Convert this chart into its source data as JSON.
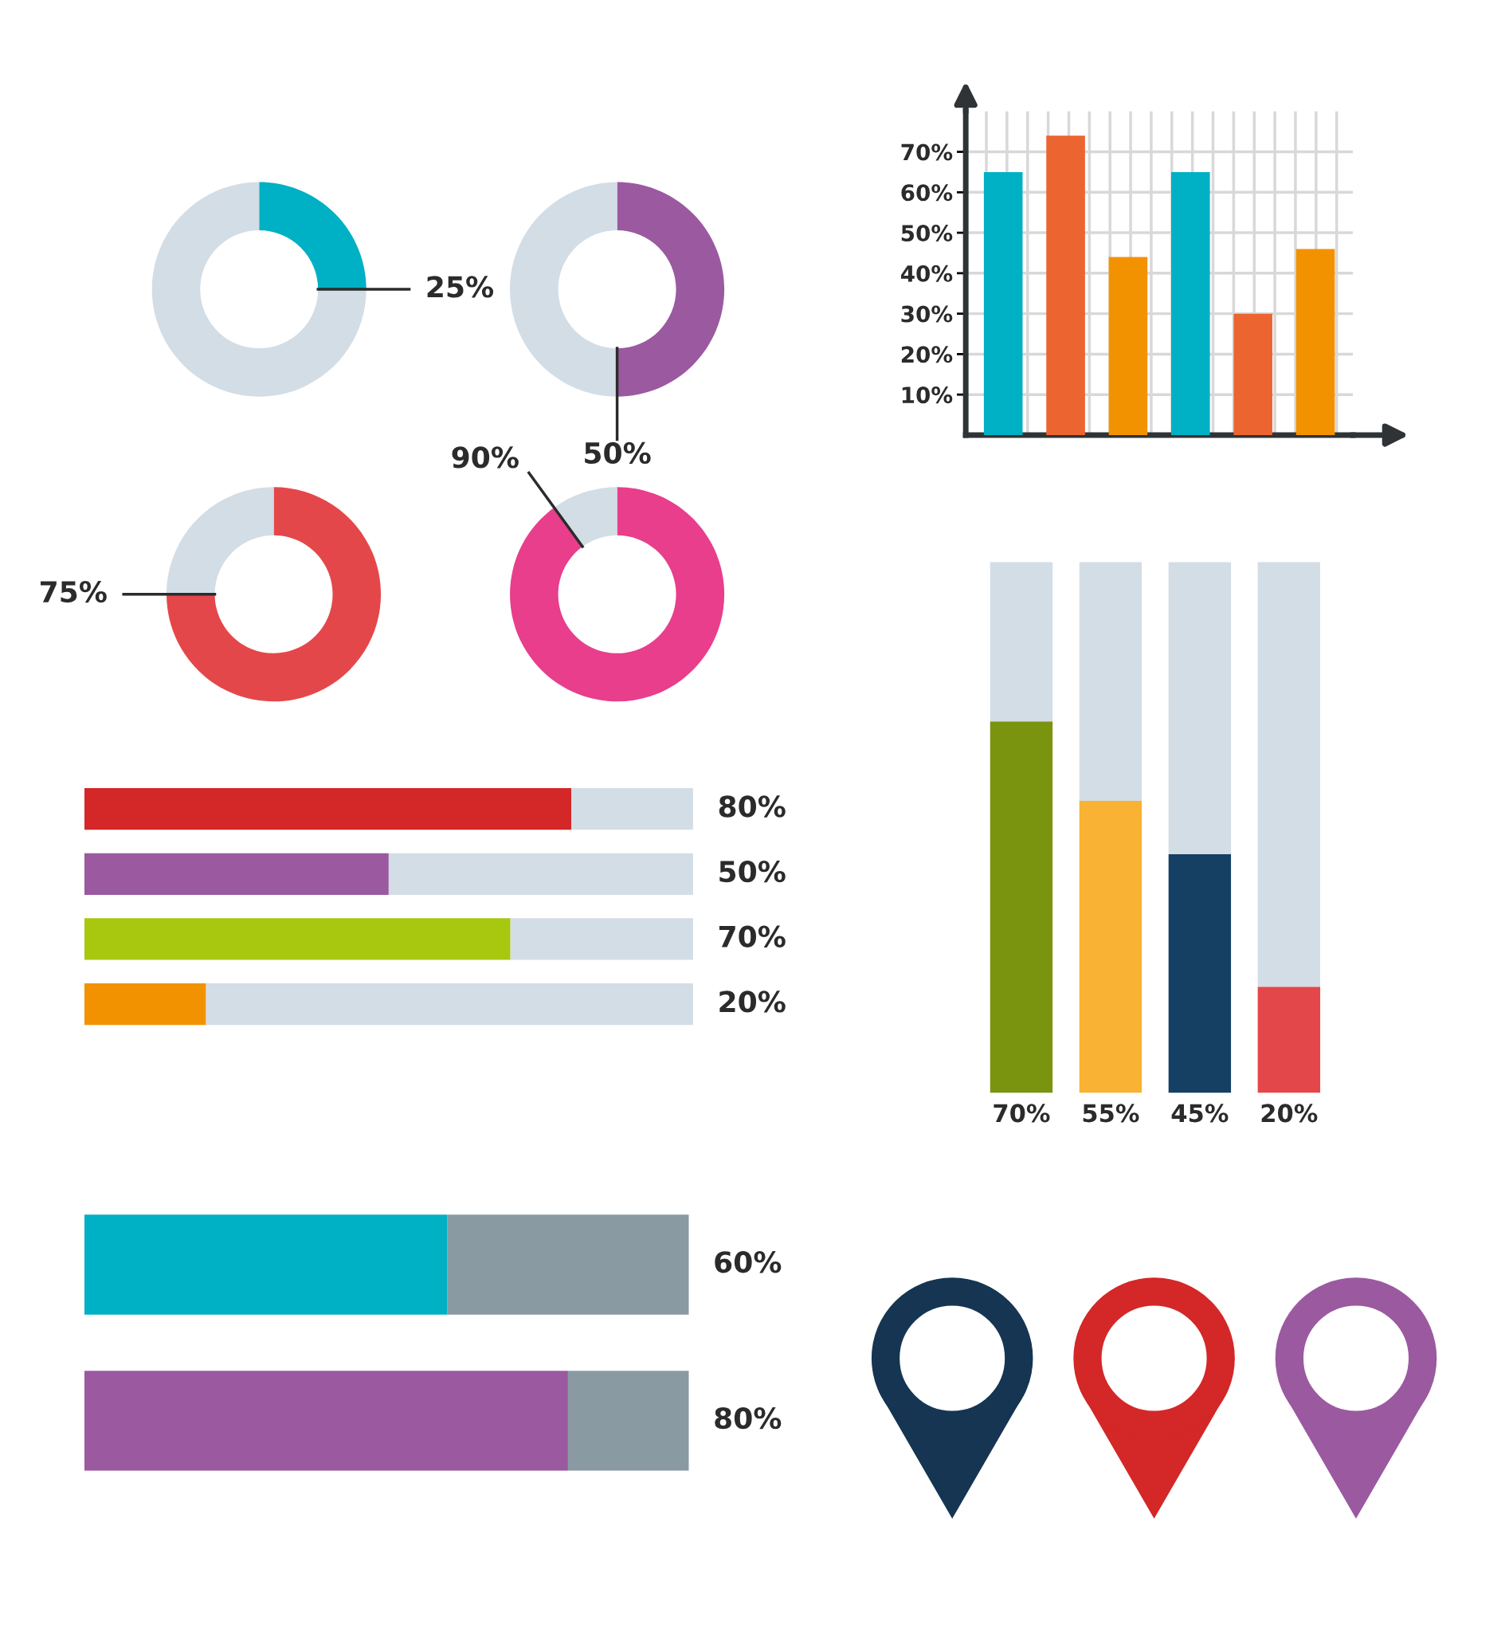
{
  "chart_data": [
    {
      "type": "donut",
      "categories": [
        null,
        null
      ],
      "values": [
        25,
        75
      ],
      "colors": [
        "#00b0c4",
        "#d3dde6"
      ],
      "value_labels": [
        "25%",
        null
      ]
    },
    {
      "type": "donut",
      "categories": [
        null,
        null
      ],
      "values": [
        50,
        50
      ],
      "colors": [
        "#9b59a0",
        "#d3dde6"
      ],
      "value_labels": [
        "50%",
        null
      ]
    },
    {
      "type": "donut",
      "categories": [
        null,
        null
      ],
      "values": [
        75,
        25
      ],
      "colors": [
        "#e4474a",
        "#d3dde6"
      ],
      "value_labels": [
        "75%",
        null
      ]
    },
    {
      "type": "donut",
      "categories": [
        null,
        null
      ],
      "values": [
        90,
        10
      ],
      "colors": [
        "#e83e8c",
        "#d3dde6"
      ],
      "value_labels": [
        "90%",
        null
      ]
    },
    {
      "type": "bar",
      "categories": [
        null,
        null,
        null,
        null,
        null,
        null
      ],
      "values": [
        65,
        74,
        44,
        65,
        30,
        46
      ],
      "colors": [
        "#00b0c4",
        "#ec6430",
        "#f39200",
        "#00b0c4",
        "#ec6430",
        "#f39200"
      ],
      "ylim": [
        0,
        80
      ],
      "yticks": [
        {
          "value": 10,
          "label": "10%"
        },
        {
          "value": 20,
          "label": "20%"
        },
        {
          "value": 30,
          "label": "30%"
        },
        {
          "value": 40,
          "label": "40%"
        },
        {
          "value": 50,
          "label": "50%"
        },
        {
          "value": 60,
          "label": "60%"
        },
        {
          "value": 70,
          "label": "70%"
        }
      ],
      "grid": true,
      "tick_labels": "y"
    },
    {
      "type": "bar",
      "orientation": "horizontal",
      "stacked": true,
      "categories": [
        null,
        null,
        null,
        null
      ],
      "xlim": [
        0,
        100
      ],
      "tick_labels": false,
      "series": [
        {
          "colors": [
            "#d42727",
            "#9b59a0",
            "#a8c70f",
            "#f39200"
          ],
          "values": [
            80,
            50,
            70,
            20
          ],
          "value_labels": [
            "80%",
            "50%",
            "70%",
            "20%"
          ]
        },
        {
          "color": "#d3dde6",
          "values": [
            20,
            50,
            30,
            80
          ]
        }
      ]
    },
    {
      "type": "bar",
      "stacked": true,
      "categories": [
        null,
        null,
        null,
        null
      ],
      "ylim": [
        0,
        100
      ],
      "tick_labels": false,
      "series": [
        {
          "colors": [
            "#7a9410",
            "#f9b233",
            "#153f63",
            "#e4474a"
          ],
          "values": [
            70,
            55,
            45,
            20
          ],
          "value_labels": [
            "70%",
            "55%",
            "45%",
            "20%"
          ]
        },
        {
          "color": "#d3dde6",
          "values": [
            30,
            45,
            55,
            80
          ]
        }
      ]
    },
    {
      "type": "bar",
      "orientation": "horizontal",
      "stacked": true,
      "categories": [
        null,
        null
      ],
      "xlim": [
        0,
        100
      ],
      "tick_labels": false,
      "series": [
        {
          "colors": [
            "#00b0c4",
            "#9b59a0"
          ],
          "values": [
            60,
            80
          ],
          "value_labels": [
            "60%",
            "80%"
          ]
        },
        {
          "color": "#8a9aa3",
          "values": [
            40,
            20
          ]
        }
      ]
    }
  ]
}
